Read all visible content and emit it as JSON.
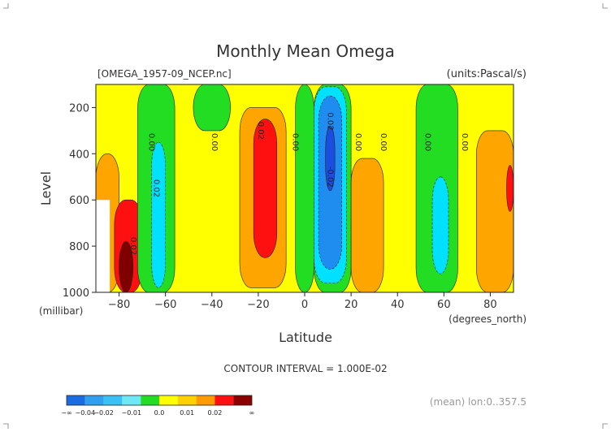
{
  "chart_data": {
    "type": "contour",
    "title": "Monthly Mean Omega",
    "subtitle_left": "[OMEGA_1957-09_NCEP.nc]",
    "subtitle_right": "(units:Pascal/s)",
    "xlabel": "Latitude",
    "x_units": "(degrees_north)",
    "ylabel": "Level",
    "y_units": "(millibar)",
    "xlim": [
      -90,
      90
    ],
    "ylim": [
      1000,
      100
    ],
    "x_ticks": [
      -80,
      -60,
      -40,
      -20,
      0,
      20,
      40,
      60,
      80
    ],
    "y_ticks": [
      200,
      400,
      600,
      800,
      1000
    ],
    "contour_interval_text": "CONTOUR INTERVAL = 1.000E-02",
    "footer_text": "(mean) lon:0..357.5",
    "contour_labels": [
      "0.00",
      "0.00",
      "0.02",
      "0.00",
      "0.02",
      "0.00",
      "-0.02",
      "0.00",
      "0.00",
      "0.00",
      "0.02",
      "0.02"
    ],
    "colorbar": {
      "colors": [
        "#1a6de0",
        "#2fa0f0",
        "#39c0f5",
        "#6fe8f5",
        "#22dd22",
        "#ffff00",
        "#ffd000",
        "#ff9a00",
        "#ff1010",
        "#8b0000"
      ],
      "labels": [
        "-∞",
        "-0.04",
        "-0.02",
        "-0.01",
        "0.0",
        "0.01",
        "0.02",
        "∞"
      ]
    },
    "level_colors": {
      "strong_neg": "#1a4ee0",
      "neg2": "#1f8cf0",
      "neg1": "#00e0ff",
      "near0_neg": "#22dd22",
      "near0_pos": "#ffff00",
      "pos1": "#ffa500",
      "pos2": "#ff1010",
      "strong_pos": "#800000"
    },
    "regions": [
      {
        "level": "pos1",
        "lat": [
          -90,
          -80
        ],
        "p": [
          400,
          1000
        ]
      },
      {
        "level": "pos2",
        "lat": [
          -82,
          -70
        ],
        "p": [
          600,
          1000
        ]
      },
      {
        "level": "strong_pos",
        "lat": [
          -80,
          -74
        ],
        "p": [
          780,
          1000
        ]
      },
      {
        "level": "near0_neg",
        "lat": [
          -72,
          -56
        ],
        "p": [
          100,
          1000
        ]
      },
      {
        "level": "neg1",
        "lat": [
          -66,
          -60
        ],
        "p": [
          350,
          980
        ]
      },
      {
        "level": "near0_neg",
        "lat": [
          -48,
          -32
        ],
        "p": [
          100,
          300
        ]
      },
      {
        "level": "pos1",
        "lat": [
          -28,
          -8
        ],
        "p": [
          200,
          980
        ]
      },
      {
        "level": "pos2",
        "lat": [
          -22,
          -12
        ],
        "p": [
          250,
          850
        ]
      },
      {
        "level": "near0_neg",
        "lat": [
          -4,
          4
        ],
        "p": [
          100,
          1000
        ]
      },
      {
        "level": "near0_neg",
        "lat": [
          4,
          20
        ],
        "p": [
          100,
          1000
        ]
      },
      {
        "level": "neg1",
        "lat": [
          4,
          18
        ],
        "p": [
          110,
          960
        ]
      },
      {
        "level": "neg2",
        "lat": [
          6,
          16
        ],
        "p": [
          150,
          900
        ]
      },
      {
        "level": "strong_neg",
        "lat": [
          9,
          13
        ],
        "p": [
          280,
          560
        ]
      },
      {
        "level": "pos1",
        "lat": [
          20,
          34
        ],
        "p": [
          420,
          1000
        ]
      },
      {
        "level": "near0_neg",
        "lat": [
          48,
          66
        ],
        "p": [
          100,
          1000
        ]
      },
      {
        "level": "neg1",
        "lat": [
          55,
          62
        ],
        "p": [
          500,
          920
        ]
      },
      {
        "level": "pos1",
        "lat": [
          74,
          90
        ],
        "p": [
          300,
          1000
        ]
      },
      {
        "level": "pos2",
        "lat": [
          87,
          90
        ],
        "p": [
          450,
          650
        ]
      }
    ],
    "missing_region": {
      "lat": [
        -90,
        -84
      ],
      "p": [
        600,
        1000
      ]
    }
  }
}
